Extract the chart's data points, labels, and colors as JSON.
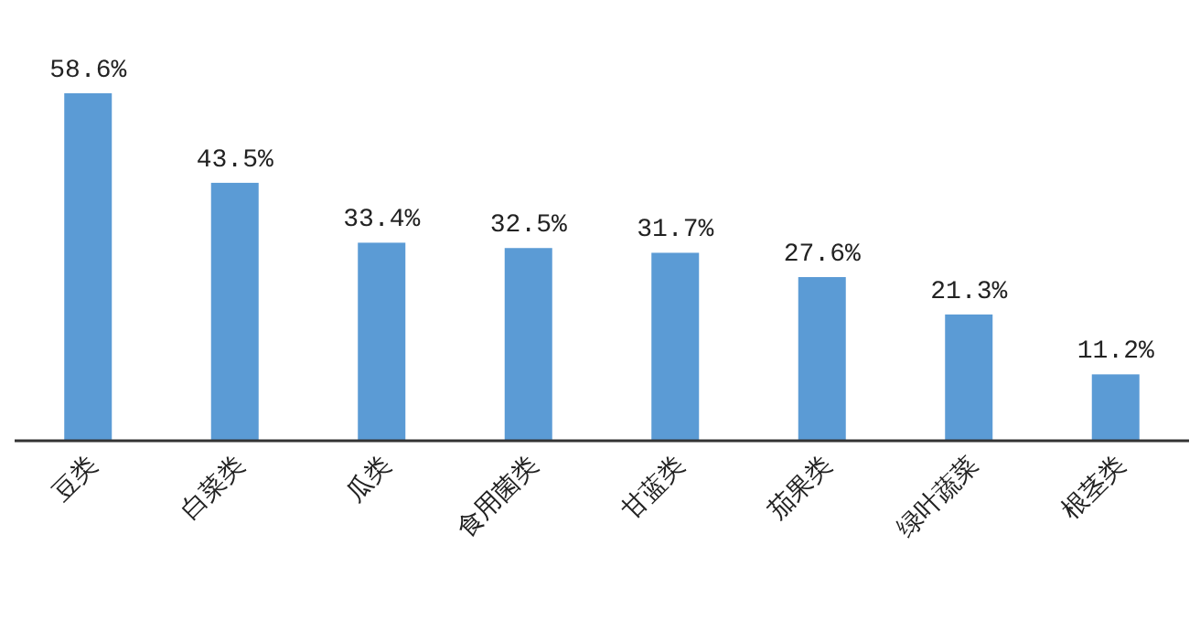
{
  "chart_data": {
    "type": "bar",
    "categories": [
      "豆类",
      "白菜类",
      "瓜类",
      "食用菌类",
      "甘蓝类",
      "茄果类",
      "绿叶蔬菜",
      "根茎类"
    ],
    "values": [
      58.6,
      43.5,
      33.4,
      32.5,
      31.7,
      27.6,
      21.3,
      11.2
    ],
    "value_labels": [
      "58.6%",
      "43.5%",
      "33.4%",
      "32.5%",
      "31.7%",
      "27.6%",
      "21.3%",
      "11.2%"
    ],
    "color": "#5b9bd5"
  }
}
